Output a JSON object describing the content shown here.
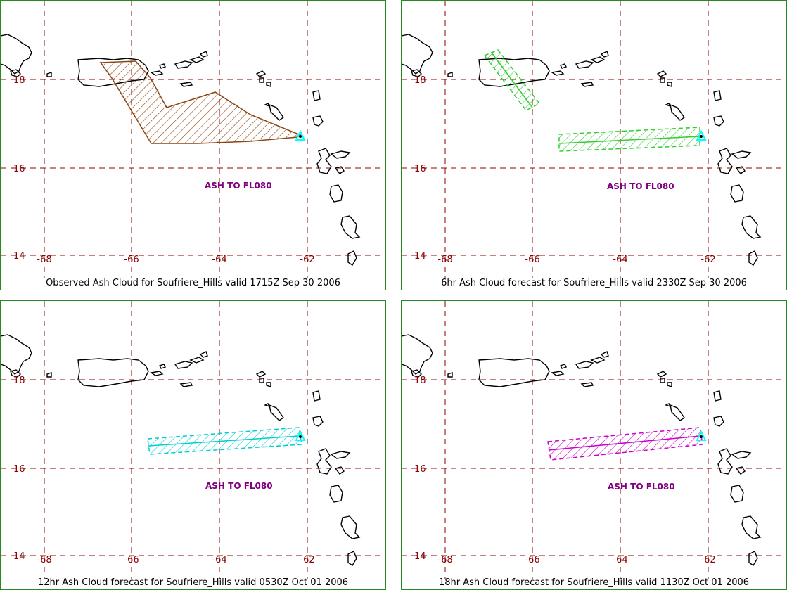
{
  "map": {
    "lat_labels": [
      "18",
      "16",
      "14"
    ],
    "lon_labels": [
      "-68",
      "-66",
      "-64",
      "-62"
    ],
    "grid_color": "#8b0000",
    "label_color": "#8b0000",
    "ash_label": "ASH TO FL080",
    "ash_label_color": "#800080",
    "vent_marker_color": "#00ffff",
    "coast_color": "#000000"
  },
  "panels": [
    {
      "caption": "Observed Ash Cloud for Soufriere_Hills valid 1715Z Sep 30 2006",
      "cloud_color": "#8b4513"
    },
    {
      "caption": "6hr Ash Cloud forecast for Soufriere_Hills valid 2330Z Sep 30 2006",
      "cloud_color": "#32cd32"
    },
    {
      "caption": "12hr Ash Cloud forecast for Soufriere_Hills valid 0530Z Oct 01 2006",
      "cloud_color": "#00ced1"
    },
    {
      "caption": "18hr Ash Cloud forecast for Soufriere_Hills valid 1130Z Oct 01 2006",
      "cloud_color": "#cc00cc"
    }
  ]
}
